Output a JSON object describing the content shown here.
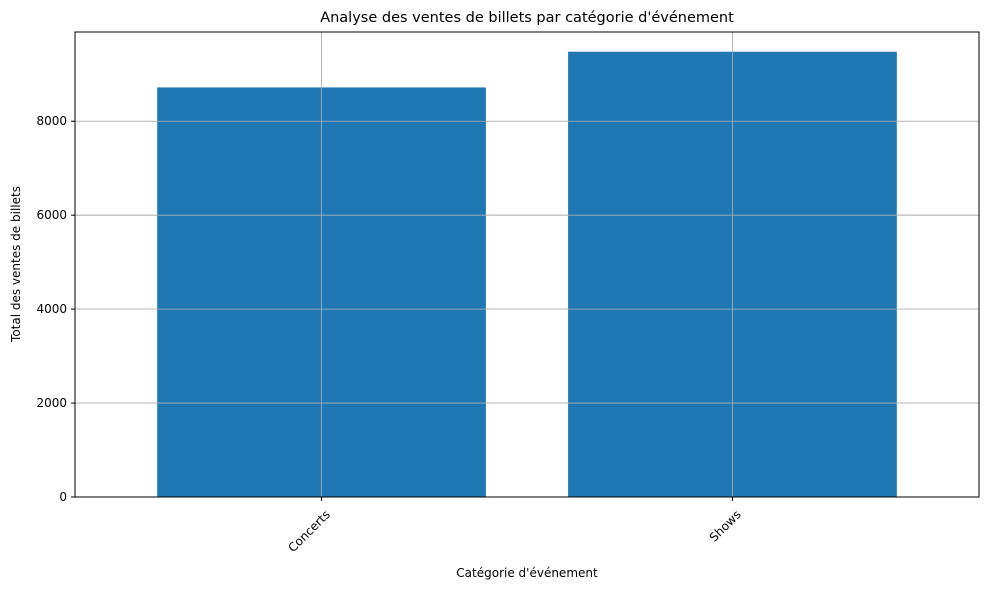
{
  "chart_data": {
    "type": "bar",
    "title": "Analyse des ventes de billets par catégorie d'événement",
    "xlabel": "Catégorie d'événement",
    "ylabel": "Total des ventes de billets",
    "categories": [
      "Concerts",
      "Shows"
    ],
    "values": [
      8720,
      9480
    ],
    "ylim": [
      0,
      9900
    ],
    "yticks": [
      0,
      2000,
      4000,
      6000,
      8000
    ],
    "ytick_labels": [
      "0",
      "2000",
      "4000",
      "6000",
      "8000"
    ],
    "grid": true,
    "legend": "none",
    "xtick_rotation": 45,
    "colors": {
      "bar": "#1f77b4",
      "grid": "#b0b0b0",
      "axis": "#000000"
    }
  }
}
